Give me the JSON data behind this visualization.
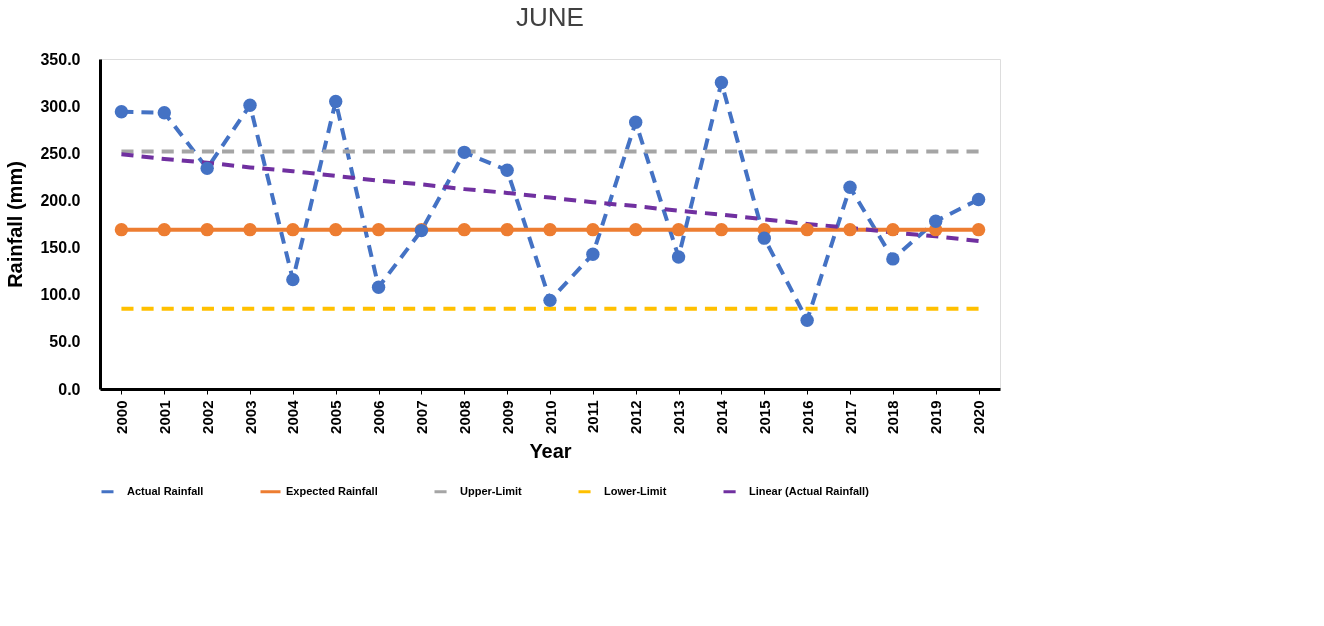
{
  "chart_data": {
    "type": "line",
    "title": "JUNE",
    "xlabel": "Year",
    "ylabel": "Rainfall (mm)",
    "categories": [
      "2000",
      "2001",
      "2002",
      "2003",
      "2004",
      "2005",
      "2006",
      "2007",
      "2008",
      "2009",
      "2010",
      "2011",
      "2012",
      "2013",
      "2014",
      "2015",
      "2016",
      "2017",
      "2018",
      "2019",
      "2020"
    ],
    "ylim": [
      0,
      350
    ],
    "yticks": [
      {
        "value": 0,
        "label": "0.0"
      },
      {
        "value": 50,
        "label": "50.0"
      },
      {
        "value": 100,
        "label": "100.0"
      },
      {
        "value": 150,
        "label": "150.0"
      },
      {
        "value": 200,
        "label": "200.0"
      },
      {
        "value": 250,
        "label": "250.0"
      },
      {
        "value": 300,
        "label": "300.0"
      },
      {
        "value": 350,
        "label": "350.0"
      }
    ],
    "grid": false,
    "legend": "bottom",
    "series": [
      {
        "name": "Actual Rainfall",
        "color": "#4472c4",
        "line_style": "dashed",
        "marker": "circle",
        "values": [
          294,
          293,
          234,
          301,
          116,
          305,
          108,
          168,
          251,
          232,
          94,
          143,
          283,
          140,
          325,
          160,
          73,
          214,
          138,
          178,
          201
        ]
      },
      {
        "name": "Expected Rainfall",
        "color": "#ed7d31",
        "line_style": "solid",
        "marker": "circle",
        "values": [
          169,
          169,
          169,
          169,
          169,
          169,
          169,
          169,
          169,
          169,
          169,
          169,
          169,
          169,
          169,
          169,
          169,
          169,
          169,
          169,
          169
        ]
      },
      {
        "name": "Upper-Limit",
        "color": "#a5a5a5",
        "line_style": "dashed",
        "marker": "none",
        "values": [
          252,
          252,
          252,
          252,
          252,
          252,
          252,
          252,
          252,
          252,
          252,
          252,
          252,
          252,
          252,
          252,
          252,
          252,
          252,
          252,
          252
        ]
      },
      {
        "name": "Lower-Limit",
        "color": "#ffc000",
        "line_style": "dashed",
        "marker": "none",
        "values": [
          85,
          85,
          85,
          85,
          85,
          85,
          85,
          85,
          85,
          85,
          85,
          85,
          85,
          85,
          85,
          85,
          85,
          85,
          85,
          85,
          85
        ]
      },
      {
        "name": "Linear (Actual Rainfall)",
        "type": "line",
        "color": "#7030a0",
        "line_style": "dashed",
        "marker": "none",
        "values": [
          249,
          244,
          240,
          235,
          231,
          226,
          221,
          217,
          212,
          208,
          203,
          198,
          194,
          189,
          185,
          180,
          175,
          171,
          166,
          162,
          157
        ]
      }
    ]
  }
}
